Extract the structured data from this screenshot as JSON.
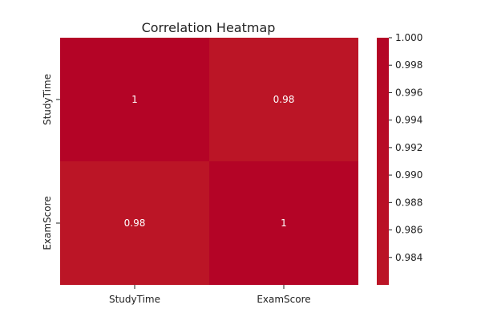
{
  "chart_data": {
    "type": "heatmap",
    "title": "Correlation Heatmap",
    "x_categories": [
      "StudyTime",
      "ExamScore"
    ],
    "y_categories": [
      "StudyTime",
      "ExamScore"
    ],
    "values": [
      [
        1,
        0.98
      ],
      [
        0.98,
        1
      ]
    ],
    "cell_labels": [
      [
        "1",
        "0.98"
      ],
      [
        "0.98",
        "1"
      ]
    ],
    "colorbar": {
      "min": 0.982,
      "max": 1.0,
      "ticks": [
        1.0,
        0.998,
        0.996,
        0.994,
        0.992,
        0.99,
        0.988,
        0.986,
        0.984
      ],
      "tick_labels": [
        "1.000",
        "0.998",
        "0.996",
        "0.994",
        "0.992",
        "0.990",
        "0.988",
        "0.986",
        "0.984"
      ],
      "colormap": "coolwarm",
      "color_at_max": "#b40426",
      "color_at_min": "#bb1526"
    },
    "grid": false,
    "legend": "colorbar-right"
  }
}
